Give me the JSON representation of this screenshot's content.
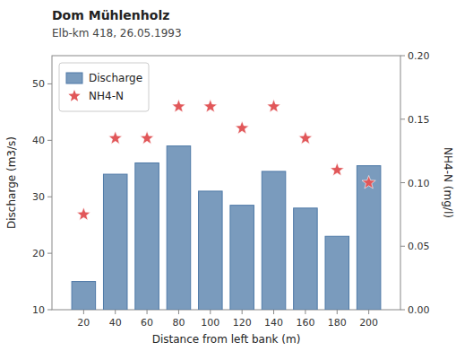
{
  "chart_data": {
    "type": "bar",
    "title": "Dom Mühlenholz",
    "subtitle": "Elb-km 418, 26.05.1993",
    "x_label": "Distance from left bank (m)",
    "y_label": "Discharge (m3/s)",
    "y2_label": "NH4-N (mg/l)",
    "x": [
      20,
      40,
      60,
      80,
      100,
      120,
      140,
      160,
      180,
      200
    ],
    "series": [
      {
        "name": "Discharge",
        "type": "bar",
        "values": [
          15,
          34,
          36,
          39,
          31,
          28.5,
          34.5,
          28,
          23,
          35.5
        ]
      },
      {
        "name": "NH4-N",
        "type": "scatter",
        "marker": "star",
        "axis": "y2",
        "values": [
          0.075,
          0.135,
          0.135,
          0.16,
          0.16,
          0.143,
          0.16,
          0.135,
          0.11,
          0.1
        ]
      }
    ],
    "xlim": [
      0,
      220
    ],
    "xticks": [
      20,
      40,
      60,
      80,
      100,
      120,
      140,
      160,
      180,
      200
    ],
    "ylim": [
      10,
      55
    ],
    "yticks": [
      10,
      20,
      30,
      40,
      50
    ],
    "y2lim": [
      0,
      0.2
    ],
    "y2ticks": [
      {
        "value": 0,
        "label": "0.00"
      },
      0.05,
      {
        "value": 0.1,
        "label": "0.10"
      },
      0.15,
      {
        "value": 0.2,
        "label": "0.20"
      }
    ],
    "grid": false,
    "legend": "upper left"
  }
}
